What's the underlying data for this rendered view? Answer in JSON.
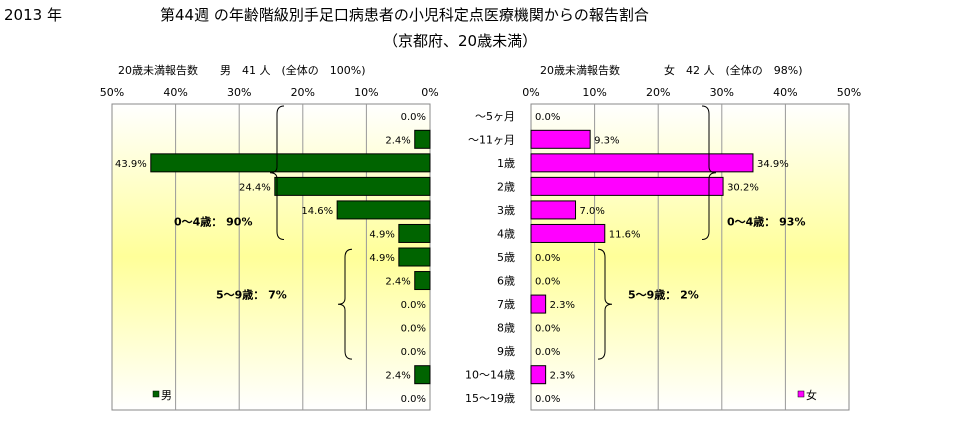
{
  "header": {
    "year": "2013 年",
    "title_line1": "第44週 の年齢階級別手足口病患者の小児科定点医療機関からの報告割合",
    "title_line2": "（京都府、20歳未満）"
  },
  "chart_data": [
    {
      "type": "bar",
      "orientation": "horizontal-reversed",
      "subtitle": "20歳未満報告数　　男　41 人　(全体の　100%)",
      "legend": "男",
      "legend_position": "bottom-left",
      "color": "#006400",
      "categories": [
        "～5ヶ月",
        "～11ヶ月",
        "1歳",
        "2歳",
        "3歳",
        "4歳",
        "5歳",
        "6歳",
        "7歳",
        "8歳",
        "9歳",
        "10～14歳",
        "15～19歳"
      ],
      "values": [
        0.0,
        2.4,
        43.9,
        24.4,
        14.6,
        4.9,
        4.9,
        2.4,
        0.0,
        0.0,
        0.0,
        2.4,
        0.0
      ],
      "value_labels": [
        "0.0%",
        "2.4%",
        "43.9%",
        "24.4%",
        "14.6%",
        "4.9%",
        "4.9%",
        "2.4%",
        "0.0%",
        "0.0%",
        "0.0%",
        "2.4%",
        "0.0%"
      ],
      "ticks": [
        "50%",
        "40%",
        "30%",
        "20%",
        "10%",
        "0%"
      ],
      "xlim": [
        0,
        50
      ],
      "grid": true,
      "annotations": [
        "0～4歳：  90%",
        "5～9歳：  7%"
      ]
    },
    {
      "type": "bar",
      "orientation": "horizontal",
      "subtitle": "20歳未満報告数　　　　女　42 人　(全体の　98%)",
      "legend": "女",
      "legend_position": "bottom-right",
      "color": "#ff00ff",
      "categories": [
        "～5ヶ月",
        "～11ヶ月",
        "1歳",
        "2歳",
        "3歳",
        "4歳",
        "5歳",
        "6歳",
        "7歳",
        "8歳",
        "9歳",
        "10～14歳",
        "15～19歳"
      ],
      "values": [
        0.0,
        9.3,
        34.9,
        30.2,
        7.0,
        11.6,
        0.0,
        0.0,
        2.3,
        0.0,
        0.0,
        2.3,
        0.0
      ],
      "value_labels": [
        "0.0%",
        "9.3%",
        "34.9%",
        "30.2%",
        "7.0%",
        "11.6%",
        "0.0%",
        "0.0%",
        "2.3%",
        "0.0%",
        "0.0%",
        "2.3%",
        "0.0%"
      ],
      "ticks": [
        "0%",
        "10%",
        "20%",
        "30%",
        "40%",
        "50%"
      ],
      "xlim": [
        0,
        50
      ],
      "grid": true,
      "annotations": [
        "0～4歳：  93%",
        "5～9歳：  2%"
      ]
    }
  ]
}
